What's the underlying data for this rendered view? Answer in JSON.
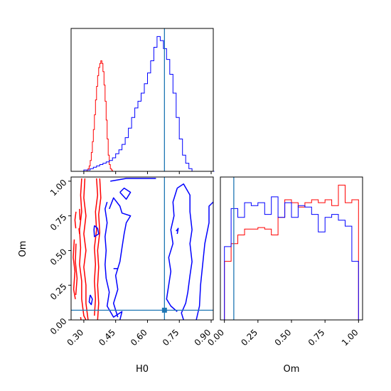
{
  "colors": {
    "series_a": "#ff0000",
    "series_b": "#0000ff",
    "truth": "#1f77b4",
    "axes": "#000000"
  },
  "chart_data": [
    {
      "panel": "marginal-H0",
      "type": "histogram",
      "xlim": [
        0.24,
        0.91
      ],
      "xticks": [
        0.3,
        0.45,
        0.6,
        0.75,
        0.9
      ],
      "xticklabels_shown": false,
      "yticks_shown": false,
      "truth_x": 0.68,
      "series": [
        {
          "color": "red",
          "bin_width": 0.005,
          "bins_start": 0.24,
          "counts": [
            0,
            0,
            0,
            0,
            0,
            0,
            0,
            0,
            0,
            0,
            0,
            0,
            0,
            0,
            0,
            1,
            2,
            4,
            8,
            14,
            22,
            31,
            42,
            53,
            63,
            71,
            77,
            80,
            82,
            80,
            74,
            64,
            52,
            38,
            24,
            12,
            5,
            2,
            1,
            0
          ]
        },
        {
          "color": "blue",
          "bin_width": 0.015,
          "bins_start": 0.24,
          "counts": [
            0,
            0,
            0,
            0,
            1,
            1,
            2,
            3,
            4,
            5,
            6,
            7,
            8,
            10,
            13,
            16,
            20,
            25,
            32,
            40,
            47,
            52,
            58,
            65,
            73,
            82,
            92,
            100,
            97,
            91,
            83,
            72,
            58,
            40,
            24,
            12,
            6,
            2,
            0,
            0,
            0,
            0,
            0,
            0,
            0
          ]
        }
      ]
    },
    {
      "panel": "joint-H0-Om",
      "type": "contour",
      "xlabel": "H0",
      "ylabel": "Om",
      "xlim": [
        0.24,
        0.91
      ],
      "ylim": [
        0.0,
        1.03
      ],
      "xticks": [
        0.3,
        0.45,
        0.6,
        0.75,
        0.9
      ],
      "xticklabels": [
        "0.30",
        "0.45",
        "0.60",
        "0.75",
        "0.90"
      ],
      "yticks": [
        0.0,
        0.25,
        0.5,
        0.75,
        1.0
      ],
      "yticklabels": [
        "0.00",
        "0.25",
        "0.50",
        "0.75",
        "1.00"
      ],
      "truth_point": [
        0.68,
        0.07
      ],
      "series": [
        {
          "color": "red",
          "levels": [
            [
              [
                0.29,
                1.02
              ],
              [
                0.285,
                0.9
              ],
              [
                0.29,
                0.78
              ],
              [
                0.28,
                0.65
              ],
              [
                0.285,
                0.52
              ],
              [
                0.28,
                0.4
              ],
              [
                0.29,
                0.28
              ],
              [
                0.29,
                0.15
              ],
              [
                0.3,
                0.03
              ],
              [
                0.31,
                0.0
              ]
            ],
            [
              [
                0.305,
                1.02
              ],
              [
                0.3,
                0.88
              ],
              [
                0.31,
                0.75
              ],
              [
                0.3,
                0.62
              ],
              [
                0.31,
                0.5
              ],
              [
                0.3,
                0.38
              ],
              [
                0.31,
                0.25
              ],
              [
                0.31,
                0.12
              ],
              [
                0.32,
                0.0
              ]
            ],
            [
              [
                0.36,
                1.02
              ],
              [
                0.365,
                0.9
              ],
              [
                0.355,
                0.78
              ],
              [
                0.36,
                0.65
              ],
              [
                0.35,
                0.52
              ],
              [
                0.355,
                0.4
              ],
              [
                0.35,
                0.28
              ],
              [
                0.355,
                0.15
              ],
              [
                0.35,
                0.03
              ]
            ],
            [
              [
                0.375,
                1.02
              ],
              [
                0.38,
                0.88
              ],
              [
                0.37,
                0.76
              ],
              [
                0.375,
                0.63
              ],
              [
                0.365,
                0.5
              ],
              [
                0.37,
                0.38
              ],
              [
                0.365,
                0.25
              ],
              [
                0.37,
                0.12
              ],
              [
                0.365,
                0.0
              ]
            ],
            [
              [
                0.255,
                0.58
              ],
              [
                0.25,
                0.45
              ],
              [
                0.258,
                0.35
              ],
              [
                0.252,
                0.22
              ],
              [
                0.26,
                0.15
              ]
            ],
            [
              [
                0.263,
                0.55
              ],
              [
                0.26,
                0.42
              ],
              [
                0.268,
                0.3
              ],
              [
                0.262,
                0.18
              ]
            ],
            [
              [
                0.263,
                0.78
              ],
              [
                0.258,
                0.72
              ],
              [
                0.262,
                0.66
              ]
            ],
            [
              [
                0.28,
                0.8
              ],
              [
                0.282,
                0.72
              ]
            ],
            [
              [
                0.277,
                0.66
              ],
              [
                0.28,
                0.62
              ]
            ],
            [
              [
                0.285,
                0.02
              ],
              [
                0.287,
                0.0
              ]
            ]
          ]
        },
        {
          "color": "blue",
          "levels": [
            [
              [
                0.425,
                1.0
              ],
              [
                0.5,
                1.02
              ],
              [
                0.64,
                1.02
              ]
            ],
            [
              [
                0.41,
                0.85
              ],
              [
                0.4,
                0.8
              ],
              [
                0.41,
                0.7
              ],
              [
                0.4,
                0.6
              ],
              [
                0.405,
                0.5
              ],
              [
                0.4,
                0.4
              ],
              [
                0.405,
                0.3
              ],
              [
                0.42,
                0.2
              ],
              [
                0.41,
                0.1
              ],
              [
                0.44,
                0.02
              ],
              [
                0.48,
                0.06
              ],
              [
                0.47,
                0.0
              ]
            ],
            [
              [
                0.42,
                0.8
              ],
              [
                0.44,
                0.88
              ],
              [
                0.47,
                0.82
              ],
              [
                0.48,
                0.77
              ],
              [
                0.52,
                0.75
              ],
              [
                0.5,
                0.7
              ],
              [
                0.49,
                0.62
              ],
              [
                0.48,
                0.52
              ],
              [
                0.47,
                0.42
              ],
              [
                0.45,
                0.32
              ],
              [
                0.46,
                0.22
              ],
              [
                0.44,
                0.12
              ],
              [
                0.46,
                0.02
              ]
            ],
            [
              [
                0.47,
                0.92
              ],
              [
                0.49,
                0.95
              ],
              [
                0.52,
                0.92
              ],
              [
                0.5,
                0.87
              ],
              [
                0.47,
                0.92
              ]
            ],
            [
              [
                0.35,
                0.68
              ],
              [
                0.365,
                0.66
              ],
              [
                0.37,
                0.62
              ],
              [
                0.35,
                0.6
              ],
              [
                0.348,
                0.65
              ],
              [
                0.35,
                0.68
              ]
            ],
            [
              [
                0.33,
                0.18
              ],
              [
                0.34,
                0.15
              ],
              [
                0.335,
                0.11
              ],
              [
                0.325,
                0.13
              ],
              [
                0.33,
                0.18
              ]
            ],
            [
              [
                0.44,
                0.37
              ],
              [
                0.46,
                0.37
              ]
            ],
            [
              [
                0.74,
                0.95
              ],
              [
                0.77,
                0.98
              ],
              [
                0.8,
                0.9
              ],
              [
                0.8,
                0.78
              ],
              [
                0.81,
                0.65
              ],
              [
                0.8,
                0.55
              ],
              [
                0.81,
                0.42
              ],
              [
                0.8,
                0.32
              ],
              [
                0.79,
                0.2
              ],
              [
                0.78,
                0.12
              ],
              [
                0.76,
                0.05
              ],
              [
                0.77,
                0.0
              ]
            ],
            [
              [
                0.74,
                0.95
              ],
              [
                0.72,
                0.85
              ],
              [
                0.725,
                0.75
              ],
              [
                0.71,
                0.65
              ],
              [
                0.72,
                0.55
              ],
              [
                0.7,
                0.45
              ],
              [
                0.71,
                0.35
              ],
              [
                0.7,
                0.25
              ],
              [
                0.69,
                0.15
              ],
              [
                0.71,
                0.1
              ],
              [
                0.74,
                0.06
              ]
            ],
            [
              [
                0.83,
                0.0
              ],
              [
                0.845,
                0.1
              ],
              [
                0.85,
                0.25
              ],
              [
                0.86,
                0.4
              ],
              [
                0.87,
                0.55
              ],
              [
                0.89,
                0.7
              ],
              [
                0.89,
                0.82
              ],
              [
                0.91,
                0.85
              ]
            ],
            [
              [
                0.735,
                0.64
              ],
              [
                0.745,
                0.66
              ],
              [
                0.74,
                0.62
              ]
            ]
          ]
        }
      ]
    },
    {
      "panel": "marginal-Om",
      "type": "histogram",
      "xlabel": "Om",
      "xlim": [
        -0.03,
        1.03
      ],
      "xticks": [
        0.0,
        0.25,
        0.5,
        0.75,
        1.0
      ],
      "xticklabels": [
        "0.00",
        "0.25",
        "0.50",
        "0.75",
        "1.00"
      ],
      "yticks_shown": false,
      "truth_x": 0.07,
      "series": [
        {
          "color": "red",
          "bin_width": 0.05,
          "bins_start": 0.0,
          "counts": [
            40,
            52,
            58,
            62,
            62,
            63,
            62,
            58,
            70,
            82,
            80,
            77,
            80,
            82,
            80,
            82,
            78,
            92,
            80,
            82
          ]
        },
        {
          "color": "blue",
          "bin_width": 0.05,
          "bins_start": 0.0,
          "counts": [
            50,
            76,
            70,
            80,
            78,
            80,
            72,
            84,
            70,
            80,
            70,
            78,
            77,
            72,
            60,
            70,
            72,
            68,
            64,
            40
          ]
        }
      ]
    }
  ]
}
